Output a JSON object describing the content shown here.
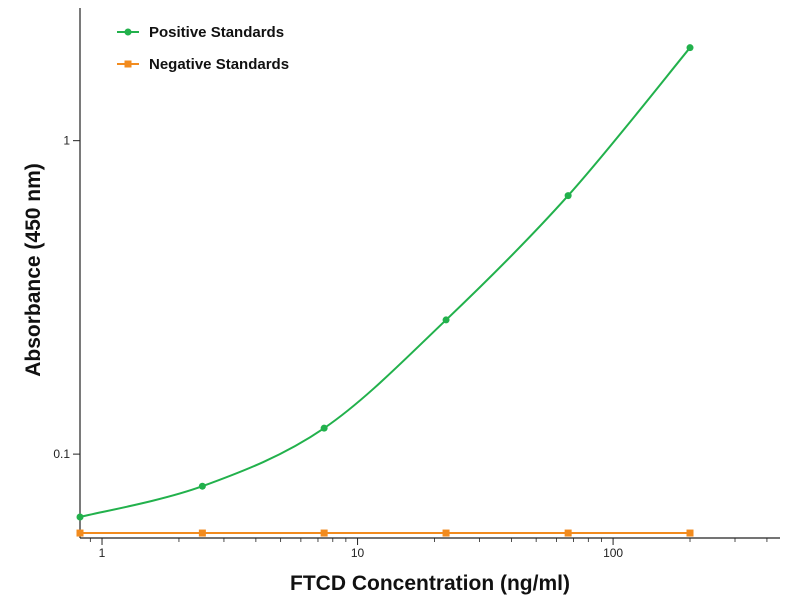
{
  "chart_data": {
    "type": "line",
    "title": "",
    "xlabel": "FTCD Concentration (ng/ml)",
    "ylabel": "Absorbance (450 nm)",
    "xscale": "log",
    "yscale": "log",
    "xlim": [
      0.82,
      450
    ],
    "ylim": [
      0.054,
      2.65
    ],
    "x_ticks": [
      {
        "value": 1,
        "label": "1"
      },
      {
        "value": 10,
        "label": "10"
      },
      {
        "value": 100,
        "label": "100"
      }
    ],
    "y_ticks": [
      {
        "value": 0.1,
        "label": "0.1"
      },
      {
        "value": 1,
        "label": "1"
      }
    ],
    "legend_position": "top-left",
    "series": [
      {
        "name": "Positive Standards",
        "color": "#22b14c",
        "marker": "circle",
        "x": [
          0.82,
          2.47,
          7.4,
          22.2,
          66.7,
          200
        ],
        "y": [
          0.063,
          0.079,
          0.121,
          0.268,
          0.668,
          1.98
        ]
      },
      {
        "name": "Negative Standards",
        "color": "#f28b1e",
        "marker": "square",
        "x": [
          0.82,
          2.47,
          7.4,
          22.2,
          66.7,
          200
        ],
        "y": [
          0.056,
          0.056,
          0.056,
          0.056,
          0.056,
          0.056
        ]
      }
    ]
  }
}
